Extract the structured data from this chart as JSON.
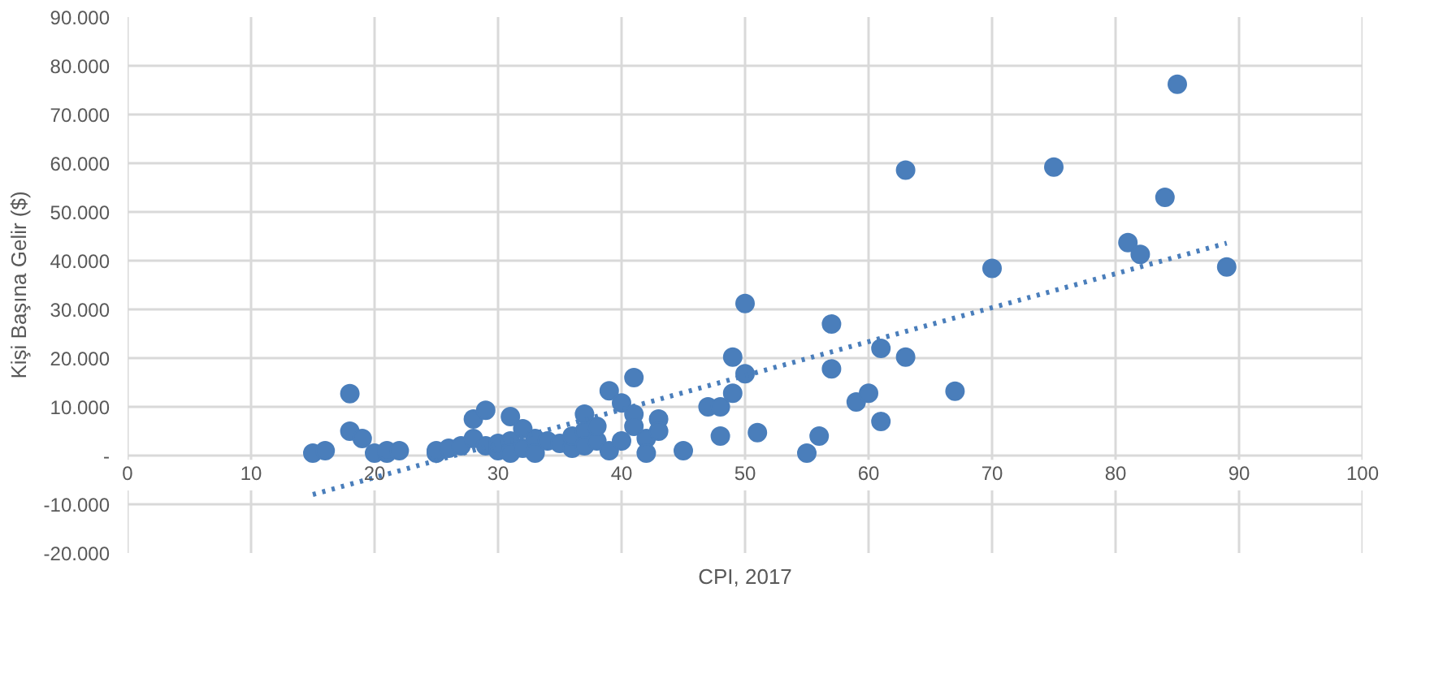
{
  "chart_data": {
    "type": "scatter",
    "xlabel": "CPI, 2017",
    "ylabel": "Kişi Başına Gelir ($)",
    "xlim": [
      0,
      100
    ],
    "xticks": [
      0,
      10,
      20,
      30,
      40,
      50,
      60,
      70,
      80,
      90,
      100
    ],
    "ylim": [
      -20000,
      90000
    ],
    "yticks": [
      {
        "value": -20000,
        "label": "-20.000"
      },
      {
        "value": -10000,
        "label": "-10.000"
      },
      {
        "value": 0,
        "label": "-"
      },
      {
        "value": 10000,
        "label": "10.000"
      },
      {
        "value": 20000,
        "label": "20.000"
      },
      {
        "value": 30000,
        "label": "30.000"
      },
      {
        "value": 40000,
        "label": "40.000"
      },
      {
        "value": 50000,
        "label": "50.000"
      },
      {
        "value": 60000,
        "label": "60.000"
      },
      {
        "value": 70000,
        "label": "70.000"
      },
      {
        "value": 80000,
        "label": "80.000"
      },
      {
        "value": 90000,
        "label": "90.000"
      }
    ],
    "grid": true,
    "series": [
      {
        "color": "#4a7ebb",
        "marker": "circle",
        "x": [
          15,
          16,
          18,
          18,
          19,
          20,
          21,
          21,
          22,
          25,
          25,
          26,
          27,
          28,
          28,
          29,
          29,
          30,
          30,
          31,
          31,
          31,
          32,
          32,
          33,
          33,
          34,
          35,
          36,
          36,
          37,
          37,
          37,
          38,
          38,
          39,
          39,
          40,
          40,
          41,
          41,
          41,
          42,
          42,
          43,
          43,
          45,
          47,
          48,
          48,
          49,
          49,
          50,
          50,
          51,
          55,
          56,
          57,
          57,
          59,
          60,
          61,
          61,
          63,
          63,
          67,
          70,
          75,
          81,
          82,
          84,
          85,
          89
        ],
        "values": [
          500,
          1000,
          12700,
          5000,
          3500,
          500,
          500,
          1000,
          1000,
          500,
          1000,
          1500,
          2000,
          7500,
          3500,
          9300,
          2000,
          1000,
          2500,
          8000,
          3000,
          500,
          5500,
          1500,
          3500,
          500,
          3000,
          2500,
          1500,
          4000,
          8500,
          5000,
          2000,
          3000,
          6000,
          13300,
          1000,
          10800,
          3000,
          16000,
          8500,
          6000,
          3500,
          500,
          7500,
          5000,
          1000,
          10000,
          4000,
          10000,
          12800,
          20200,
          31200,
          16800,
          4700,
          500,
          4000,
          27000,
          17800,
          11000,
          12800,
          22000,
          7000,
          58600,
          20200,
          13200,
          38400,
          59200,
          43700,
          41300,
          53000,
          76200,
          38700
        ]
      },
      {
        "type": "line",
        "color": "#4a7ebb",
        "line_style": "dotted",
        "x": [
          15,
          89
        ],
        "values": [
          -8000,
          43600
        ]
      }
    ]
  }
}
